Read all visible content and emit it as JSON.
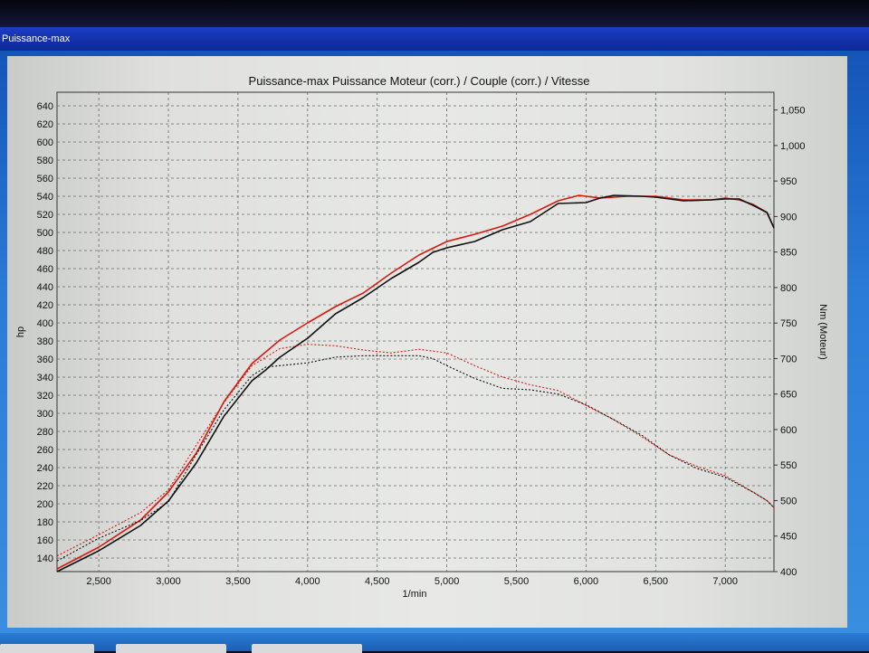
{
  "window": {
    "title": "Puissance-max"
  },
  "colors": {
    "power_corr": "#d81a0e",
    "power_ref": "#111111",
    "grid": "#6a6a6a"
  },
  "chart_data": {
    "type": "line",
    "title": "Puissance-max Puissance Moteur (corr.) / Couple (corr.) / Vitesse",
    "xlabel": "1/min",
    "ylabel": "hp",
    "y2label": "Nm (Moteur)",
    "xlim": [
      2200,
      7350
    ],
    "ylim": [
      125,
      655
    ],
    "y2lim": [
      400,
      1075
    ],
    "grid": true,
    "x_ticks": [
      2500,
      3000,
      3500,
      4000,
      4500,
      5000,
      5500,
      6000,
      6500,
      7000
    ],
    "x_tick_labels": [
      "2,500",
      "3,000",
      "3,500",
      "4,000",
      "4,500",
      "5,000",
      "5,500",
      "6,000",
      "6,500",
      "7,000"
    ],
    "y_ticks": [
      140,
      160,
      180,
      200,
      220,
      240,
      260,
      280,
      300,
      320,
      340,
      360,
      380,
      400,
      420,
      440,
      460,
      480,
      500,
      520,
      540,
      560,
      580,
      600,
      620,
      640
    ],
    "y_tick_labels": [
      "140",
      "160",
      "180",
      "200",
      "220",
      "240",
      "260",
      "280",
      "300",
      "320",
      "340",
      "360",
      "380",
      "400",
      "420",
      "440",
      "460",
      "480",
      "500",
      "520",
      "540",
      "560",
      "580",
      "600",
      "620",
      "640"
    ],
    "y2_ticks": [
      400,
      450,
      500,
      550,
      600,
      650,
      700,
      750,
      800,
      850,
      900,
      950,
      1000,
      1050
    ],
    "y2_tick_labels": [
      "400",
      "450",
      "500",
      "550",
      "600",
      "650",
      "700",
      "750",
      "800",
      "850",
      "900",
      "950",
      "1,000",
      "1,050"
    ],
    "series": [
      {
        "axis": "y",
        "color": "#d81a0e",
        "style": "solid",
        "width": 1.6,
        "x": [
          2200,
          2500,
          2800,
          3000,
          3200,
          3400,
          3600,
          3800,
          4000,
          4200,
          4400,
          4600,
          4800,
          5000,
          5200,
          5400,
          5600,
          5800,
          5950,
          6100,
          6300,
          6500,
          6700,
          6900,
          7000,
          7100,
          7200,
          7300,
          7350
        ],
        "y": [
          128,
          152,
          182,
          213,
          256,
          313,
          355,
          381,
          400,
          418,
          433,
          455,
          475,
          490,
          498,
          507,
          520,
          535,
          541,
          538,
          540,
          540,
          536,
          536,
          538,
          536,
          531,
          522,
          505
        ]
      },
      {
        "axis": "y",
        "color": "#111111",
        "style": "solid",
        "width": 1.6,
        "x": [
          2200,
          2500,
          2800,
          3000,
          3200,
          3400,
          3600,
          3700,
          3800,
          4000,
          4200,
          4400,
          4600,
          4800,
          4900,
          5000,
          5200,
          5400,
          5600,
          5800,
          6000,
          6100,
          6200,
          6400,
          6500,
          6700,
          6900,
          7000,
          7100,
          7200,
          7300,
          7350
        ],
        "y": [
          125,
          148,
          176,
          203,
          245,
          297,
          336,
          348,
          362,
          383,
          410,
          428,
          449,
          467,
          478,
          483,
          490,
          503,
          512,
          532,
          533,
          538,
          541,
          540,
          539,
          535,
          536,
          537,
          537,
          530,
          522,
          505
        ]
      },
      {
        "axis": "y2",
        "color": "#d81a0e",
        "style": "dotted",
        "width": 1.1,
        "x": [
          2200,
          2500,
          2800,
          3000,
          3200,
          3400,
          3600,
          3800,
          4000,
          4200,
          4400,
          4600,
          4800,
          5000,
          5200,
          5400,
          5600,
          5800,
          6000,
          6200,
          6400,
          6600,
          6800,
          7000,
          7200,
          7300,
          7350
        ],
        "y": [
          422,
          452,
          483,
          515,
          578,
          638,
          690,
          714,
          720,
          718,
          712,
          708,
          713,
          708,
          690,
          674,
          663,
          655,
          634,
          614,
          590,
          564,
          548,
          535,
          512,
          500,
          490
        ]
      },
      {
        "axis": "y2",
        "color": "#111111",
        "style": "dotted",
        "width": 1.1,
        "x": [
          2200,
          2500,
          2800,
          3000,
          3200,
          3400,
          3600,
          3700,
          3800,
          4000,
          4200,
          4400,
          4600,
          4800,
          4900,
          5000,
          5200,
          5400,
          5600,
          5800,
          6000,
          6200,
          6400,
          6600,
          6800,
          7000,
          7200,
          7300,
          7350
        ],
        "y": [
          415,
          447,
          472,
          498,
          565,
          628,
          676,
          688,
          690,
          694,
          702,
          704,
          704,
          704,
          700,
          690,
          672,
          658,
          656,
          650,
          635,
          614,
          592,
          564,
          545,
          533,
          512,
          500,
          490
        ]
      }
    ]
  }
}
